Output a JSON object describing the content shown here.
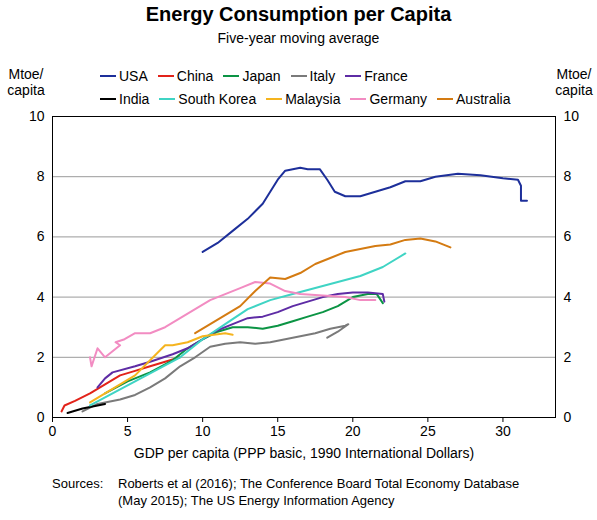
{
  "chart_data": {
    "type": "line",
    "title": "Energy Consumption per Capita",
    "subtitle": "Five-year moving average",
    "xlabel": "GDP per capita (PPP basic, 1990 International Dollars)",
    "ylabel": "Mtoe/capita",
    "y2label": "Mtoe/capita",
    "source_label": "Sources:",
    "source_text": "Roberts et al (2016); The Conference Board Total Economy Database (May 2015); The US Energy Information Agency",
    "xlim": [
      0,
      33.5
    ],
    "xticks": [
      0,
      5,
      10,
      15,
      20,
      25,
      30
    ],
    "ylim": [
      0,
      10
    ],
    "yticks": [
      0,
      2,
      4,
      6,
      8,
      10
    ],
    "y2lim": [
      0,
      10
    ],
    "y2ticks": [
      0,
      2,
      4,
      6,
      8,
      10
    ],
    "grid": true,
    "legend": "top",
    "series": [
      {
        "name": "USA",
        "color": "#1d2f9a",
        "x": [
          10,
          11,
          12,
          13,
          14,
          14.5,
          15,
          15.5,
          16.5,
          17,
          17.8,
          18.3,
          18.8,
          19.5,
          20.5,
          21.5,
          22.5,
          23.5,
          24.5,
          25.5,
          27,
          28.5,
          30,
          31,
          31.2,
          31.2,
          31.6
        ],
        "values": [
          5.5,
          5.8,
          6.2,
          6.6,
          7.1,
          7.5,
          7.9,
          8.2,
          8.3,
          8.25,
          8.25,
          7.9,
          7.5,
          7.35,
          7.35,
          7.5,
          7.65,
          7.85,
          7.85,
          8.0,
          8.1,
          8.05,
          7.95,
          7.9,
          7.7,
          7.2,
          7.2
        ]
      },
      {
        "name": "China",
        "color": "#e2231a",
        "x": [
          0.6,
          0.8,
          1.5,
          2.5,
          3.5,
          4.5,
          5.5,
          6.5,
          7.5,
          8.5
        ],
        "values": [
          0.2,
          0.4,
          0.55,
          0.8,
          1.1,
          1.4,
          1.55,
          1.7,
          1.85,
          2.0
        ]
      },
      {
        "name": "Japan",
        "color": "#0b9444",
        "x": [
          3.5,
          5,
          6.5,
          8,
          9,
          10,
          11,
          12,
          13,
          14,
          15,
          16,
          17,
          18,
          19,
          20,
          21,
          21.6,
          22
        ],
        "values": [
          0.8,
          1.2,
          1.5,
          1.9,
          2.3,
          2.6,
          2.85,
          3.0,
          3.0,
          2.95,
          3.05,
          3.2,
          3.35,
          3.5,
          3.7,
          4.0,
          4.1,
          4.1,
          3.8
        ]
      },
      {
        "name": "Italy",
        "color": "#7a7a7a",
        "x": [
          2,
          3,
          4.5,
          5.5,
          6.5,
          7.5,
          8.5,
          9.5,
          10.5,
          11.5,
          12.5,
          13.5,
          14.5,
          15.5,
          16.5,
          17.5,
          18.5,
          19.5,
          19.7,
          19,
          18.3
        ],
        "values": [
          0.2,
          0.45,
          0.6,
          0.75,
          1.0,
          1.3,
          1.7,
          2.0,
          2.35,
          2.45,
          2.5,
          2.45,
          2.5,
          2.6,
          2.7,
          2.8,
          2.95,
          3.05,
          3.1,
          2.85,
          2.65
        ]
      },
      {
        "name": "France",
        "color": "#5e2ca5",
        "x": [
          3,
          3.5,
          4,
          5.5,
          6.5,
          8,
          9,
          10,
          11,
          12,
          13,
          14,
          15,
          16,
          17,
          18,
          19,
          20,
          21,
          22,
          22.1
        ],
        "values": [
          1.0,
          1.3,
          1.5,
          1.7,
          1.85,
          2.1,
          2.3,
          2.6,
          2.9,
          3.1,
          3.3,
          3.35,
          3.5,
          3.7,
          3.85,
          4.0,
          4.1,
          4.15,
          4.15,
          4.1,
          3.85
        ]
      },
      {
        "name": "India",
        "color": "#000000",
        "x": [
          1,
          2,
          3,
          3.5
        ],
        "values": [
          0.15,
          0.3,
          0.4,
          0.45
        ]
      },
      {
        "name": "South Korea",
        "color": "#3fd4c4",
        "x": [
          2.5,
          4,
          5.5,
          7,
          8.5,
          10,
          11.5,
          13,
          14.5,
          16,
          17.5,
          19,
          20.5,
          22,
          23.5
        ],
        "values": [
          0.4,
          0.8,
          1.2,
          1.6,
          2.0,
          2.6,
          3.1,
          3.6,
          3.9,
          4.1,
          4.3,
          4.5,
          4.7,
          5.0,
          5.45
        ]
      },
      {
        "name": "Malaysia",
        "color": "#f5b41e",
        "x": [
          2.5,
          3.5,
          4.5,
          5.5,
          6.5,
          7.5,
          8,
          9,
          10,
          11.5,
          12
        ],
        "values": [
          0.5,
          0.8,
          1.1,
          1.4,
          1.9,
          2.4,
          2.4,
          2.5,
          2.7,
          2.8,
          2.75
        ]
      },
      {
        "name": "Germany",
        "color": "#f28cc2",
        "x": [
          2.5,
          2.6,
          3.0,
          3.5,
          4.0,
          4.5,
          4.2,
          4.8,
          5.5,
          6.5,
          7.5,
          8.5,
          9.5,
          10.5,
          11.5,
          12.5,
          13.5,
          14.5,
          15.5,
          16.5,
          18,
          19.5,
          20.5,
          21.5
        ],
        "values": [
          2.0,
          1.7,
          2.3,
          2.0,
          2.2,
          2.4,
          2.5,
          2.6,
          2.8,
          2.8,
          3.0,
          3.3,
          3.6,
          3.9,
          4.1,
          4.3,
          4.5,
          4.45,
          4.2,
          4.1,
          4.05,
          4.0,
          3.9,
          3.9
        ]
      },
      {
        "name": "Australia",
        "color": "#d47b12",
        "x": [
          9.5,
          10.5,
          11.5,
          12.5,
          13.5,
          14.5,
          15.5,
          16.5,
          17.5,
          18.5,
          19.5,
          20.5,
          21.5,
          22.5,
          23.5,
          24.5,
          25.5,
          26.5
        ],
        "values": [
          2.8,
          3.1,
          3.4,
          3.7,
          4.2,
          4.65,
          4.6,
          4.8,
          5.1,
          5.3,
          5.5,
          5.6,
          5.7,
          5.75,
          5.9,
          5.95,
          5.85,
          5.65
        ]
      }
    ]
  }
}
